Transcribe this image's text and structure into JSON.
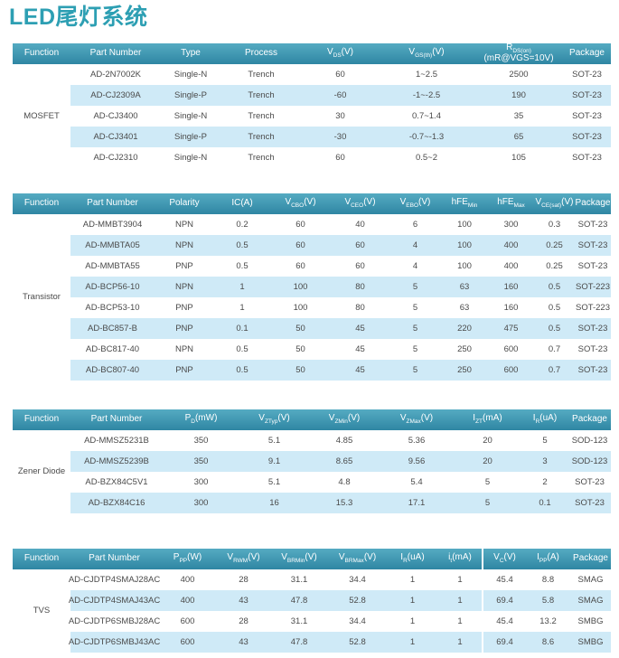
{
  "page": {
    "title": "LED尾灯系统"
  },
  "colors": {
    "accent": "#2D9FB3",
    "table_header_top": "#55ABC2",
    "table_header_bottom": "#2F86A3",
    "row_stripe": "#CFEAF7",
    "body_text": "#4A4A4A",
    "header_text": "#FFFFFF"
  },
  "tables": [
    {
      "function": "MOSFET",
      "headers": [
        "Function",
        "Part Number",
        "Type",
        "Process",
        "V_{DS}(V)",
        "V_{GS(th)}(V)",
        "R_{DS(on)}\n(mR@VGS=10V)",
        "Package"
      ],
      "rows": [
        [
          "AD-2N7002K",
          "Single-N",
          "Trench",
          "60",
          "1~2.5",
          "2500",
          "SOT-23"
        ],
        [
          "AD-CJ2309A",
          "Single-P",
          "Trench",
          "-60",
          "-1~-2.5",
          "190",
          "SOT-23"
        ],
        [
          "AD-CJ3400",
          "Single-N",
          "Trench",
          "30",
          "0.7~1.4",
          "35",
          "SOT-23"
        ],
        [
          "AD-CJ3401",
          "Single-P",
          "Trench",
          "-30",
          "-0.7~-1.3",
          "65",
          "SOT-23"
        ],
        [
          "AD-CJ2310",
          "Single-N",
          "Trench",
          "60",
          "0.5~2",
          "105",
          "SOT-23"
        ]
      ]
    },
    {
      "function": "Transistor",
      "headers": [
        "Function",
        "Part Number",
        "Polarity",
        "IC(A)",
        "V_{CBO}(V)",
        "V_{CEO}(V)",
        "V_{EBO}(V)",
        "hFE_{Min}",
        "hFE_{Max}",
        "V_{CE(sat)}(V)",
        "Package"
      ],
      "rows": [
        [
          "AD-MMBT3904",
          "NPN",
          "0.2",
          "60",
          "40",
          "6",
          "100",
          "300",
          "0.3",
          "SOT-23"
        ],
        [
          "AD-MMBTA05",
          "NPN",
          "0.5",
          "60",
          "60",
          "4",
          "100",
          "400",
          "0.25",
          "SOT-23"
        ],
        [
          "AD-MMBTA55",
          "PNP",
          "0.5",
          "60",
          "60",
          "4",
          "100",
          "400",
          "0.25",
          "SOT-23"
        ],
        [
          "AD-BCP56-10",
          "NPN",
          "1",
          "100",
          "80",
          "5",
          "63",
          "160",
          "0.5",
          "SOT-223"
        ],
        [
          "AD-BCP53-10",
          "PNP",
          "1",
          "100",
          "80",
          "5",
          "63",
          "160",
          "0.5",
          "SOT-223"
        ],
        [
          "AD-BC857-B",
          "PNP",
          "0.1",
          "50",
          "45",
          "5",
          "220",
          "475",
          "0.5",
          "SOT-23"
        ],
        [
          "AD-BC817-40",
          "NPN",
          "0.5",
          "50",
          "45",
          "5",
          "250",
          "600",
          "0.7",
          "SOT-23"
        ],
        [
          "AD-BC807-40",
          "PNP",
          "0.5",
          "50",
          "45",
          "5",
          "250",
          "600",
          "0.7",
          "SOT-23"
        ]
      ]
    },
    {
      "function": "Zener Diode",
      "headers": [
        "Function",
        "Part Number",
        "P_{D}(mW)",
        "V_{ZTyp}(V)",
        "V_{ZMin}(V)",
        "V_{ZMax}(V)",
        "I_{ZT}(mA)",
        "I_{R}(uA)",
        "Package"
      ],
      "rows": [
        [
          "AD-MMSZ5231B",
          "350",
          "5.1",
          "4.85",
          "5.36",
          "20",
          "5",
          "SOD-123"
        ],
        [
          "AD-MMSZ5239B",
          "350",
          "9.1",
          "8.65",
          "9.56",
          "20",
          "3",
          "SOD-123"
        ],
        [
          "AD-BZX84C5V1",
          "300",
          "5.1",
          "4.8",
          "5.4",
          "5",
          "2",
          "SOT-23"
        ],
        [
          "AD-BZX84C16",
          "300",
          "16",
          "15.3",
          "17.1",
          "5",
          "0.1",
          "SOT-23"
        ]
      ]
    },
    {
      "function": "TVS",
      "headers": [
        "Function",
        "Part Number",
        "P_{PP}(W)",
        "V_{RWM}(V)",
        "V_{BRMin}(V)",
        "V_{BRMax}(V)",
        "I_{R}(uA)",
        "i_{t}(mA)",
        "V_{C}(V)",
        "I_{PP}(A)",
        "Package"
      ],
      "rows": [
        [
          "AD-CJDTP4SMAJ28AC",
          "400",
          "28",
          "31.1",
          "34.4",
          "1",
          "1",
          "45.4",
          "8.8",
          "SMAG"
        ],
        [
          "AD-CJDTP4SMAJ43AC",
          "400",
          "43",
          "47.8",
          "52.8",
          "1",
          "1",
          "69.4",
          "5.8",
          "SMAG"
        ],
        [
          "AD-CJDTP6SMBJ28AC",
          "600",
          "28",
          "31.1",
          "34.4",
          "1",
          "1",
          "45.4",
          "13.2",
          "SMBG"
        ],
        [
          "AD-CJDTP6SMBJ43AC",
          "600",
          "43",
          "47.8",
          "52.8",
          "1",
          "1",
          "69.4",
          "8.6",
          "SMBG"
        ]
      ]
    }
  ]
}
